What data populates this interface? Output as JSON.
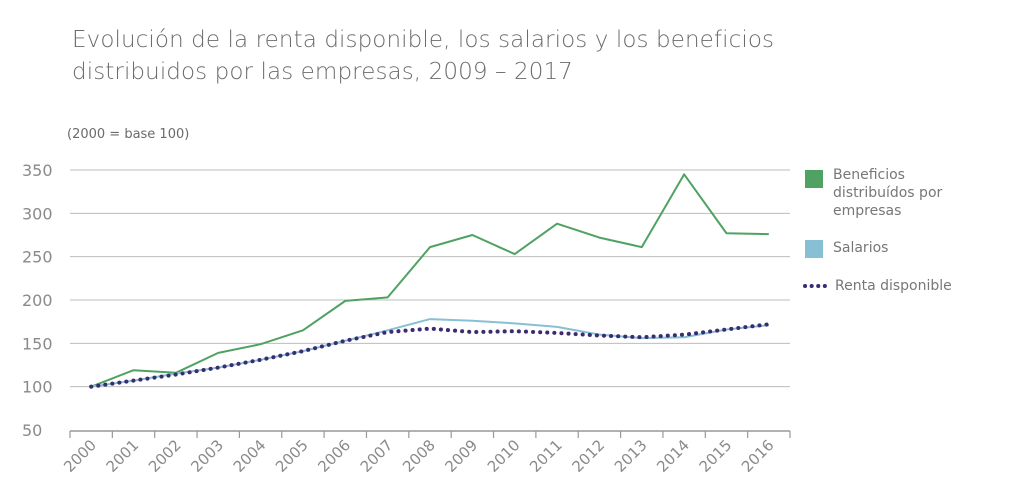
{
  "chart_data": {
    "type": "line",
    "title": "Evolución de la renta disponible, los salarios y los beneficios distribuidos por las empresas, 2009 – 2017",
    "subtitle": "(2000 = base 100)",
    "xlabel": "",
    "ylabel": "",
    "ylim": [
      50,
      350
    ],
    "yticks": [
      350,
      300,
      250,
      200,
      150,
      100,
      50
    ],
    "categories": [
      "2000",
      "2001",
      "2002",
      "2003",
      "2004",
      "2005",
      "2006",
      "2007",
      "2008",
      "2009",
      "2010",
      "2011",
      "2012",
      "2013",
      "2014",
      "2015",
      "2016"
    ],
    "grid": true,
    "legend_position": "right",
    "series": [
      {
        "name": "Beneficios distribuídos por empresas",
        "style": "solid",
        "color": "#4fa262",
        "values": [
          100,
          119,
          116,
          139,
          149,
          165,
          199,
          203,
          261,
          275,
          253,
          288,
          272,
          261,
          345,
          277,
          276
        ]
      },
      {
        "name": "Salarios",
        "style": "solid",
        "color": "#87bfd5",
        "values": [
          100,
          107,
          115,
          122,
          131,
          141,
          153,
          165,
          178,
          176,
          173,
          169,
          160,
          156,
          157,
          166,
          171
        ]
      },
      {
        "name": "Renta disponible",
        "style": "dotted",
        "color": "#3a2c72",
        "values": [
          100,
          107,
          114,
          122,
          131,
          141,
          153,
          163,
          167,
          163,
          164,
          162,
          159,
          157,
          160,
          166,
          172
        ]
      }
    ]
  }
}
